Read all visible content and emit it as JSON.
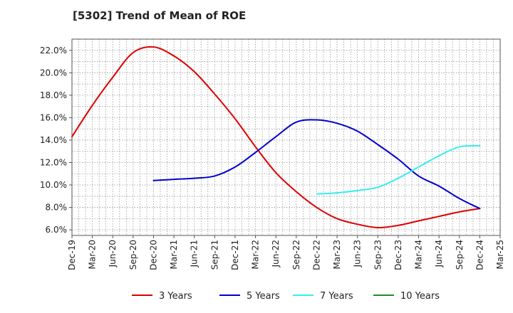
{
  "chart_data": {
    "type": "line",
    "title": "[5302]  Trend of Mean of ROE",
    "xlabel": "",
    "ylabel": "",
    "x_ticks": [
      "Dec-19",
      "Mar-20",
      "Jun-20",
      "Sep-20",
      "Dec-20",
      "Mar-21",
      "Jun-21",
      "Sep-21",
      "Dec-21",
      "Mar-22",
      "Jun-22",
      "Sep-22",
      "Dec-22",
      "Mar-23",
      "Jun-23",
      "Sep-23",
      "Dec-23",
      "Mar-24",
      "Jun-24",
      "Sep-24",
      "Dec-24",
      "Mar-25"
    ],
    "y_ticks": [
      "6.0%",
      "8.0%",
      "10.0%",
      "12.0%",
      "14.0%",
      "16.0%",
      "18.0%",
      "20.0%",
      "22.0%"
    ],
    "ylim": [
      5.5,
      23.0
    ],
    "grid": true,
    "legend_position": "bottom",
    "series": [
      {
        "name": "3 Years",
        "color": "#dd0000",
        "points": [
          {
            "x": "Dec-19",
            "y": 14.3
          },
          {
            "x": "Mar-20",
            "y": 17.1
          },
          {
            "x": "Jun-20",
            "y": 19.6
          },
          {
            "x": "Sep-20",
            "y": 21.8
          },
          {
            "x": "Dec-20",
            "y": 22.3
          },
          {
            "x": "Mar-21",
            "y": 21.5
          },
          {
            "x": "Jun-21",
            "y": 20.1
          },
          {
            "x": "Sep-21",
            "y": 18.1
          },
          {
            "x": "Dec-21",
            "y": 15.9
          },
          {
            "x": "Mar-22",
            "y": 13.4
          },
          {
            "x": "Jun-22",
            "y": 11.1
          },
          {
            "x": "Sep-22",
            "y": 9.4
          },
          {
            "x": "Dec-22",
            "y": 8.0
          },
          {
            "x": "Mar-23",
            "y": 7.0
          },
          {
            "x": "Jun-23",
            "y": 6.5
          },
          {
            "x": "Sep-23",
            "y": 6.2
          },
          {
            "x": "Dec-23",
            "y": 6.4
          },
          {
            "x": "Mar-24",
            "y": 6.8
          },
          {
            "x": "Jun-24",
            "y": 7.2
          },
          {
            "x": "Sep-24",
            "y": 7.6
          },
          {
            "x": "Dec-24",
            "y": 7.9
          }
        ]
      },
      {
        "name": "5 Years",
        "color": "#0000cc",
        "points": [
          {
            "x": "Dec-20",
            "y": 10.4
          },
          {
            "x": "Mar-21",
            "y": 10.5
          },
          {
            "x": "Jun-21",
            "y": 10.6
          },
          {
            "x": "Sep-21",
            "y": 10.8
          },
          {
            "x": "Dec-21",
            "y": 11.6
          },
          {
            "x": "Mar-22",
            "y": 12.9
          },
          {
            "x": "Jun-22",
            "y": 14.3
          },
          {
            "x": "Sep-22",
            "y": 15.6
          },
          {
            "x": "Dec-22",
            "y": 15.8
          },
          {
            "x": "Mar-23",
            "y": 15.5
          },
          {
            "x": "Jun-23",
            "y": 14.8
          },
          {
            "x": "Sep-23",
            "y": 13.6
          },
          {
            "x": "Dec-23",
            "y": 12.3
          },
          {
            "x": "Mar-24",
            "y": 10.8
          },
          {
            "x": "Jun-24",
            "y": 9.9
          },
          {
            "x": "Sep-24",
            "y": 8.8
          },
          {
            "x": "Dec-24",
            "y": 7.9
          }
        ]
      },
      {
        "name": "7 Years",
        "color": "#33eeee",
        "points": [
          {
            "x": "Dec-22",
            "y": 9.2
          },
          {
            "x": "Mar-23",
            "y": 9.3
          },
          {
            "x": "Jun-23",
            "y": 9.5
          },
          {
            "x": "Sep-23",
            "y": 9.8
          },
          {
            "x": "Dec-23",
            "y": 10.6
          },
          {
            "x": "Mar-24",
            "y": 11.6
          },
          {
            "x": "Jun-24",
            "y": 12.6
          },
          {
            "x": "Sep-24",
            "y": 13.4
          },
          {
            "x": "Dec-24",
            "y": 13.5
          }
        ]
      },
      {
        "name": "10 Years",
        "color": "#228b22",
        "points": []
      }
    ]
  }
}
